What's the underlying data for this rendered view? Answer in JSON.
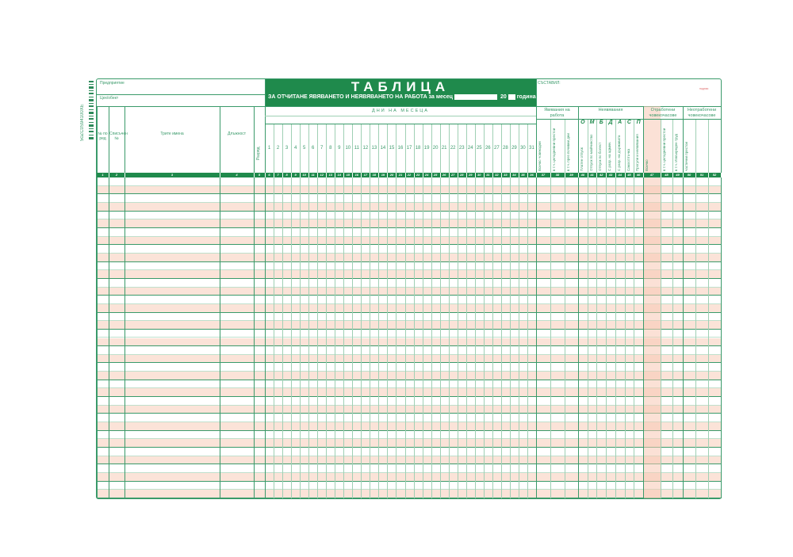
{
  "barcode_text": "50ZC0S94100XE",
  "header": {
    "enterprise_label": "Предприятие",
    "department_label": "Цех/обект",
    "title": "ТАБЛИЦА",
    "subtitle": "ЗА ОТЧИТАНЕ ЯВЯВАНЕТО И НЕЯВЯВАНЕТО НА РАБОТА за месец",
    "year_prefix": "20",
    "year_suffix": "година",
    "compiled_label": "СЪСТАВИЛ:",
    "signature_label": "подпис"
  },
  "columns": {
    "row_no": "№ по ред",
    "list_no": "Списъчен №",
    "names": "Трите имена",
    "position": "Длъжност",
    "grade": "Разряд",
    "days_header": "ДНИ НА МЕСЕЦА",
    "days": [
      "1",
      "2",
      "3",
      "4",
      "5",
      "6",
      "7",
      "8",
      "9",
      "10",
      "11",
      "12",
      "13",
      "14",
      "15",
      "16",
      "17",
      "18",
      "19",
      "20",
      "21",
      "22",
      "23",
      "24",
      "25",
      "26",
      "27",
      "28",
      "29",
      "30",
      "31"
    ],
    "attendance_group": "Явявания на работа",
    "attendance": [
      "Всичко човекодни",
      "в т.ч. целодневни престои",
      "в т.ч. през почивни дни"
    ],
    "absence_group": "Неявявания",
    "absence_letters": [
      "О",
      "М",
      "Б",
      "Д",
      "А",
      "С",
      "П"
    ],
    "absence": [
      "Платен отпуск",
      "Отпуск по майчинство",
      "Отпуск по болест",
      "С разр. на админ.",
      "С разр. на държавата",
      "Самоотлъчка",
      "Прогули и неявявания"
    ],
    "worked_group": "Отработени човекочасове",
    "worked": [
      "Всичко",
      "в т.ч. целодневни престои",
      "в т.ч. Извънреден труд"
    ],
    "not_worked_group": "Неотработени човекочасове",
    "not_worked": [
      "частични престои",
      "",
      ""
    ],
    "numbers": [
      "1",
      "2",
      "3",
      "4",
      "5",
      "6",
      "7",
      "8",
      "9",
      "10",
      "11",
      "12",
      "13",
      "14",
      "15",
      "16",
      "17",
      "18",
      "19",
      "20",
      "21",
      "22",
      "23",
      "24",
      "25",
      "26",
      "27",
      "28",
      "29",
      "30",
      "31",
      "32",
      "33",
      "34",
      "35",
      "36",
      "37",
      "38",
      "39",
      "40",
      "41",
      "42",
      "43",
      "44",
      "45",
      "46",
      "47",
      "48",
      "49",
      "50",
      "51",
      "52"
    ]
  },
  "colors": {
    "accent": "#1f8a4c",
    "line": "#3a9a6a",
    "row_shade": "#fbe3d8"
  }
}
